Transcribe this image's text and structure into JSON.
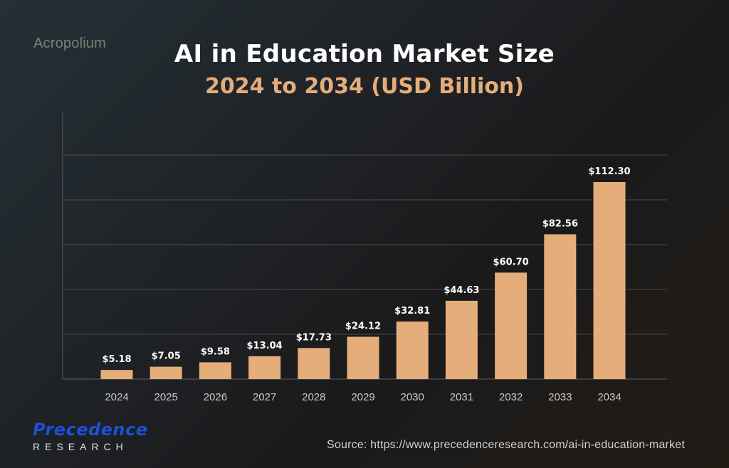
{
  "watermark": "Acropolium",
  "chart_data": {
    "type": "bar",
    "title": "AI in Education Market Size",
    "subtitle": "2024 to 2034 (USD Billion)",
    "categories": [
      "2024",
      "2025",
      "2026",
      "2027",
      "2028",
      "2029",
      "2030",
      "2031",
      "2032",
      "2033",
      "2034"
    ],
    "values": [
      5.18,
      7.05,
      9.58,
      13.04,
      17.73,
      24.12,
      32.81,
      44.63,
      60.7,
      82.56,
      112.3
    ],
    "data_labels": [
      "$5.18",
      "$7.05",
      "$9.58",
      "$13.04",
      "$17.73",
      "$24.12",
      "$32.81",
      "$44.63",
      "$60.70",
      "$82.56",
      "$112.30"
    ],
    "xlabel": "",
    "ylabel": "",
    "grid": true,
    "bar_color": "#e5ad7a"
  },
  "footer": {
    "logo_main": "Precedence",
    "logo_sub": "RESEARCH",
    "source": "Source: https://www.precedenceresearch.com/ai-in-education-market"
  }
}
